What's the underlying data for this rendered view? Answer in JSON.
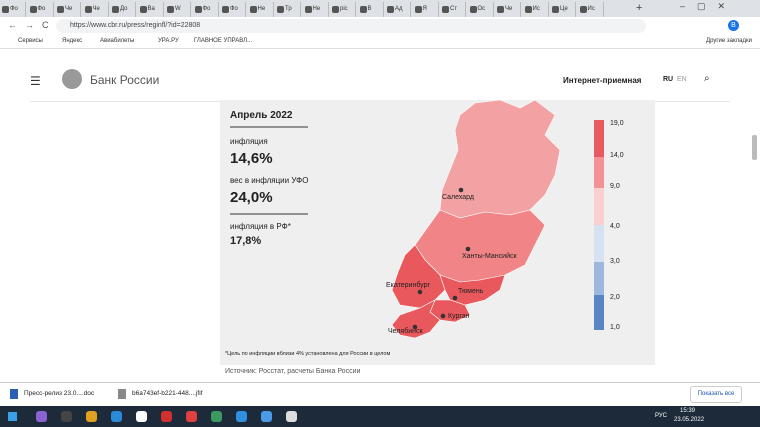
{
  "tabs": [
    "Фо",
    "Фо",
    "Че",
    "Че",
    "До",
    "Ва",
    "W",
    "Фо",
    "Фо",
    "Не",
    "Тр",
    "Не",
    "pic",
    "В",
    "Ад",
    "Я",
    "Ст",
    "Ос",
    "Че",
    "Ис",
    "Це",
    "Ис"
  ],
  "address": "https://www.cbr.ru/press/reginfl/?id=22808",
  "bookmarks": [
    "Сервисы",
    "Яндекс",
    "Авиабилеты",
    "УРА.РУ",
    "ГЛАВНОЕ УПРАВЛ..."
  ],
  "other_bookmarks": "Другие закладки",
  "site": {
    "logo": "Банк России",
    "reception": "Интернет-приемная",
    "lang_ru": "RU",
    "lang_en": "EN"
  },
  "infographic": {
    "period": "Апрель 2022",
    "inflation_label": "инфляция",
    "inflation_value": "14,6%",
    "weight_label": "вес в инфляции УФО",
    "weight_value": "24,0%",
    "rf_label": "инфляция  в РФ*",
    "rf_value": "17,8%",
    "cities": [
      "Салехард",
      "Ханты-Мансийск",
      "Екатеринбург",
      "Тюмень",
      "Курган",
      "Челябинск"
    ],
    "legend": [
      "19,0",
      "14,0",
      "9,0",
      "4,0",
      "3,0",
      "2,0",
      "1,0"
    ],
    "footnote": "*Цель по инфляции вблизи 4% установлена для России в целом"
  },
  "source": "Источник: Росстат, расчеты Банка России",
  "downloads": [
    "Пресс-релиз 23.0....doc",
    "b6a743ef-b221-448....jfif"
  ],
  "show_all": "Показать все",
  "taskbar": {
    "lang": "РУС",
    "time": "15:39",
    "date": "23.05.2022"
  }
}
